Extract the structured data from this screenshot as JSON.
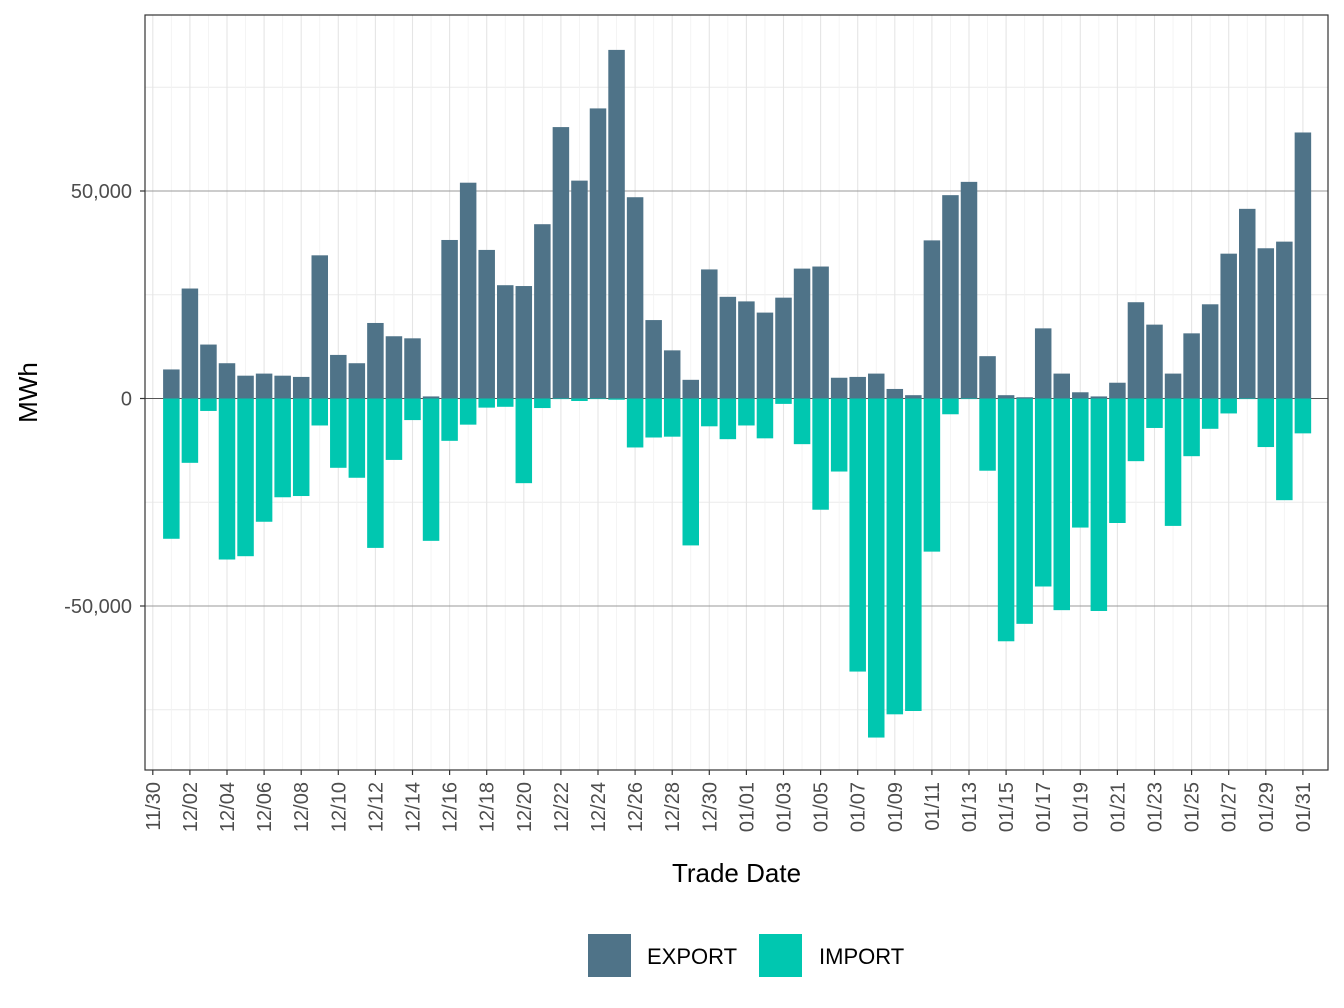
{
  "chart_data": {
    "type": "bar",
    "stacked": "diverging",
    "xlabel": "Trade Date",
    "ylabel": "MWh",
    "ylim": [
      -89000,
      90000
    ],
    "yticks": [
      -50000,
      0,
      50000
    ],
    "ytick_labels": [
      "-50,000",
      "0",
      "50,000"
    ],
    "legend_position": "bottom",
    "grid": true,
    "categories": [
      "12/01",
      "12/02",
      "12/03",
      "12/04",
      "12/05",
      "12/06",
      "12/07",
      "12/08",
      "12/09",
      "12/10",
      "12/11",
      "12/12",
      "12/13",
      "12/14",
      "12/15",
      "12/16",
      "12/17",
      "12/18",
      "12/19",
      "12/20",
      "12/21",
      "12/22",
      "12/23",
      "12/24",
      "12/25",
      "12/26",
      "12/27",
      "12/28",
      "12/29",
      "12/30",
      "12/31",
      "01/01",
      "01/02",
      "01/03",
      "01/04",
      "01/05",
      "01/06",
      "01/07",
      "01/08",
      "01/09",
      "01/10",
      "01/11",
      "01/12",
      "01/13",
      "01/14",
      "01/15",
      "01/16",
      "01/17",
      "01/18",
      "01/19",
      "01/20",
      "01/21",
      "01/22",
      "01/23",
      "01/24",
      "01/25",
      "01/26",
      "01/27",
      "01/28",
      "01/29",
      "01/30",
      "01/31"
    ],
    "tick_labels": [
      "11/30",
      "12/02",
      "12/04",
      "12/06",
      "12/08",
      "12/10",
      "12/12",
      "12/14",
      "12/16",
      "12/18",
      "12/20",
      "12/22",
      "12/24",
      "12/26",
      "12/28",
      "12/30",
      "01/01",
      "01/03",
      "01/05",
      "01/07",
      "01/09",
      "01/11",
      "01/13",
      "01/15",
      "01/17",
      "01/19",
      "01/21",
      "01/23",
      "01/25",
      "01/27",
      "01/29",
      "01/31"
    ],
    "series": [
      {
        "name": "EXPORT",
        "color": "#4f7388",
        "values": [
          7000,
          26500,
          13000,
          8500,
          5500,
          6000,
          5500,
          5200,
          34500,
          10500,
          8500,
          18200,
          15000,
          14500,
          500,
          38200,
          52000,
          35800,
          27300,
          27100,
          42000,
          65400,
          52500,
          69900,
          84000,
          48500,
          18900,
          11600,
          4500,
          31100,
          24500,
          23400,
          20700,
          24300,
          31300,
          31800,
          5000,
          5200,
          6000,
          2300,
          800,
          38100,
          49000,
          52200,
          10200,
          800,
          300,
          16900,
          6000,
          1500,
          500,
          3800,
          23200,
          17800,
          6000,
          15700,
          22700,
          34900,
          45700,
          36200,
          37800,
          64100
        ]
      },
      {
        "name": "IMPORT",
        "color": "#00c7b0",
        "values": [
          -33800,
          -15500,
          -3000,
          -38800,
          -38000,
          -29700,
          -23800,
          -23500,
          -6500,
          -16700,
          -19100,
          -36000,
          -14800,
          -5200,
          -34300,
          -10200,
          -6300,
          -2200,
          -2000,
          -20400,
          -2300,
          0,
          -600,
          0,
          -300,
          -11800,
          -9400,
          -9200,
          -35400,
          -6700,
          -9800,
          -6500,
          -9600,
          -1300,
          -11000,
          -26800,
          -17600,
          -65800,
          -81700,
          -76100,
          -75300,
          -36900,
          -3800,
          0,
          -17400,
          -58500,
          -54300,
          -45300,
          -51000,
          -31100,
          -51200,
          -30000,
          -15100,
          -7100,
          -30700,
          -13900,
          -7300,
          -3600,
          0,
          -11700,
          -24500,
          -8400
        ]
      }
    ]
  }
}
